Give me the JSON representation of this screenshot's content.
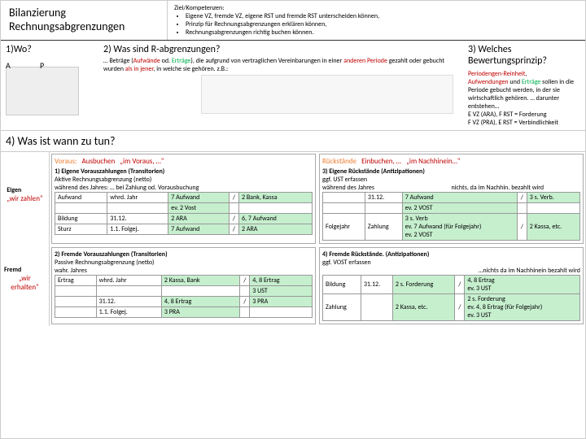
{
  "header": {
    "title_l1": "Bilanzierung",
    "title_l2": "Rechnungsabgrenzungen",
    "goals_label": "Ziel/Kompetenzen:",
    "goals": [
      "Eigene VZ, fremde VZ, eigene RST und fremde RST unterscheiden können,",
      "Prinzip für Rechnungsabgrenzungen erklären können,",
      "Rechnungsabgrenzungen richtig buchen können."
    ]
  },
  "q1": {
    "title": "1)Wo?",
    "a": "A",
    "p": "P"
  },
  "q2": {
    "title": "2) Was sind R-abgrenzungen?",
    "desc_pre": "… Beträge (",
    "desc_auf": "Aufwände",
    "desc_mid1": " od. ",
    "desc_ert": "Erträge",
    "desc_mid2": "), die aufgrund von vertraglichen Vereinbarungen in einer ",
    "desc_and": "anderen Periode",
    "desc_mid3": " gezahlt oder gebucht wurden ",
    "desc_als": "als in jener",
    "desc_end": ", in welche sie gehören. z.B.:"
  },
  "q3": {
    "title": "3) Welches Bewertungsprinzip?",
    "p1a": "Periodengen-Reinheit",
    "p1b": ",",
    "p2a": "Aufwendungen",
    "p2b": " und ",
    "p2c": "Erträge",
    "p2d": " sollen in die Periode gebucht werden, in der sie wirtschaftlich gehören. … darunter entstehen…",
    "p3": "E VZ (ARA), F RST = Forderung",
    "p4": "F VZ (PRA), E RST = Verbindlichkeit"
  },
  "s4": {
    "title": "4) Was ist wann zu tun?"
  },
  "rowlabels": {
    "eigen": "Eigen",
    "fremd": "Fremd",
    "zahlen": "„wir zahlen\"",
    "erhalten": "„wir erhalten\""
  },
  "leftHead": {
    "voraus": "Voraus:",
    "aus": "Ausbuchen",
    "imvoraus": "„im Voraus, …\""
  },
  "rightHead": {
    "rueck": "Rückstände",
    "ein": "Einbuchen, …",
    "imnach": "„im Nachhinein…\""
  },
  "p1": {
    "title": "1) Eigene Vorauszahlungen (Transitorien)",
    "sub": "Aktive Rechnungsabgrenzung (netto)",
    "during": "während des Jahres: … bei Zahlung od. Vorausbuchung",
    "r1c1": "Aufwand",
    "r1c2": "whrd. Jahr",
    "r1c3": "7 Aufwand",
    "r1c4": "2 Bank, Kassa",
    "r1c3b": "ev. 2 Vost",
    "r2c1": "Bildung",
    "r2c2": "31.12.",
    "r2c3": "2 ARA",
    "r2c4": "6, 7 Aufwand",
    "r3c1": "Sturz",
    "r3c2": "1.1. Folgej.",
    "r3c3": "7 Aufwand",
    "r3c4": "2 ARA"
  },
  "p2": {
    "title": "2) Fremde Vorauszahlungen (Transitorien)",
    "sub": "Passive Rechnungsabgrenzung (netto)",
    "during": "wahr. Jahres",
    "r1c1": "Ertrag",
    "r1c2": "whrd. Jahr",
    "r1c3": "2 Kassa, Bank",
    "r1c4": "4, 8 Ertrag",
    "r1c4b": "3 UST",
    "r2c2": "31.12.",
    "r2c3": "4, 8 Ertrag",
    "r2c4": "3 PRA",
    "r3c2": "1.1. Folgej.",
    "r3c3": "3 PRA"
  },
  "p3": {
    "title": "3) Eigene Rückstände (Antizipationen)",
    "sub": "ggf. UST erfassen",
    "during": "während des Jahres",
    "note": "nichts, da im Nachhin. bezahlt wird",
    "date": "31.12.",
    "r0c3": "7 Aufwand",
    "r0c4": "3 s. Verb.",
    "r0c3b": "ev. 2 VOST",
    "r1c1": "Folgejahr",
    "r1c2": "Zahlung",
    "r1c3a": "3 s. Verb",
    "r1c3b": "ev. 7 Aufwand (für Folgejahr)",
    "r1c3c": "ev. 2 VOST",
    "r1c4": "2 Kassa, etc."
  },
  "p4": {
    "title": "4) Fremde Rückstände. (Antizipationen)",
    "sub": "ggf. VOST erfassen",
    "note": "…nichts da im Nachhinein bezahlt wird",
    "r1c1": "Bildung",
    "r1c2": "31.12.",
    "r1c3": "2 s. Forderung",
    "r1c4a": "4, 8 Ertrag",
    "r1c4b": "ev. 3 UST",
    "r2c1": "Zahlung",
    "r2c3": "2 Kassa, etc.",
    "r2c4a": "2 s. Forderung",
    "r2c4b": "ev. 4, 8 Ertrag (für Folgejahr)",
    "r2c4c": "ev. 3 UST"
  }
}
